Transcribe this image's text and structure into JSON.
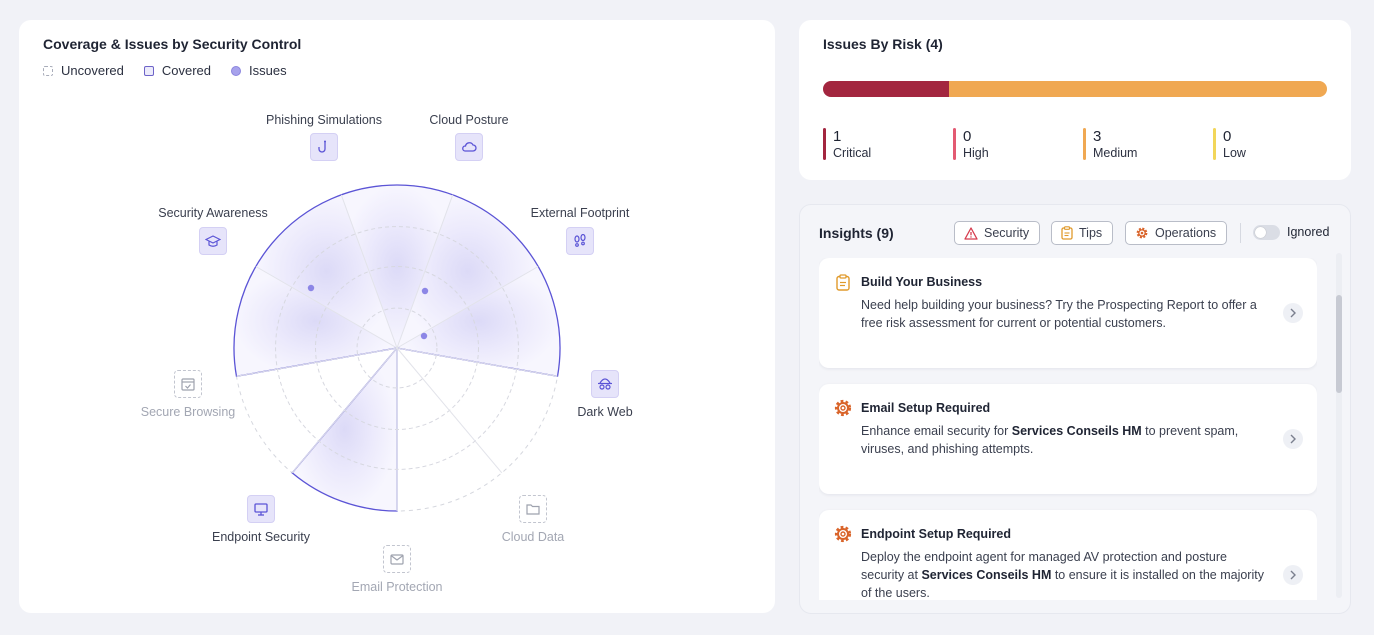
{
  "coverage": {
    "title": "Coverage & Issues by Security Control",
    "legend": {
      "uncovered": "Uncovered",
      "covered": "Covered",
      "issues": "Issues"
    },
    "controls": [
      {
        "label": "Phishing Simulations",
        "status": "covered",
        "icon": "fishhook-icon"
      },
      {
        "label": "Cloud Posture",
        "status": "covered",
        "icon": "cloud-icon"
      },
      {
        "label": "External Footprint",
        "status": "covered",
        "icon": "footprints-icon"
      },
      {
        "label": "Dark Web",
        "status": "covered",
        "icon": "incognito-mask-icon"
      },
      {
        "label": "Cloud Data",
        "status": "uncovered",
        "icon": "folder-icon"
      },
      {
        "label": "Email Protection",
        "status": "uncovered",
        "icon": "envelope-icon"
      },
      {
        "label": "Endpoint Security",
        "status": "covered",
        "icon": "monitor-icon"
      },
      {
        "label": "Secure Browsing",
        "status": "uncovered",
        "icon": "browser-check-icon"
      },
      {
        "label": "Security Awareness",
        "status": "covered",
        "icon": "graduation-cap-icon"
      }
    ],
    "colors": {
      "outline": "#5b54d6",
      "fill": "#efeefc",
      "issue": "#8c86e6"
    }
  },
  "risk": {
    "title": "Issues By Risk (4)",
    "total": 4,
    "levels": [
      {
        "count": "1",
        "label": "Critical",
        "color": "#a3263f"
      },
      {
        "count": "0",
        "label": "High",
        "color": "#e35a72"
      },
      {
        "count": "3",
        "label": "Medium",
        "color": "#f0a852"
      },
      {
        "count": "0",
        "label": "Low",
        "color": "#f2d65a"
      }
    ]
  },
  "insights": {
    "title": "Insights (9)",
    "filters": {
      "security": "Security",
      "tips": "Tips",
      "operations": "Operations"
    },
    "ignored_label": "Ignored",
    "items": [
      {
        "title": "Build Your Business",
        "icon": "clipboard-icon",
        "desc_parts": [
          "Need help building your business? Try the Prospecting Report to offer a free risk assessment for current or potential customers."
        ]
      },
      {
        "title": "Email Setup Required",
        "icon": "gear-icon",
        "desc_parts": [
          "Enhance email security for ",
          "Services Conseils HM",
          " to prevent spam, viruses, and phishing attempts."
        ]
      },
      {
        "title": "Endpoint Setup Required",
        "icon": "gear-icon",
        "desc_parts": [
          "Deploy the endpoint agent for managed AV protection and posture security at ",
          "Services Conseils HM",
          " to ensure it is installed on the majority of the users."
        ]
      }
    ]
  }
}
